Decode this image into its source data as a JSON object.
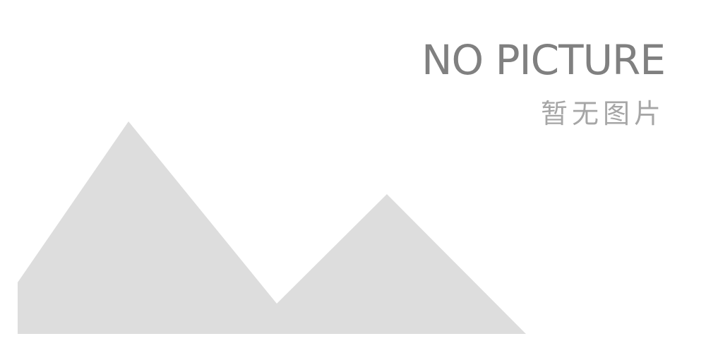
{
  "placeholder": {
    "title": "NO PICTURE",
    "subtitle": "暂无图片"
  },
  "colors": {
    "background": "#ffffff",
    "mountain": "#dddddd",
    "title_text": "#808080",
    "subtitle_text": "#a6a6a6"
  },
  "icon": "mountains-placeholder-icon"
}
